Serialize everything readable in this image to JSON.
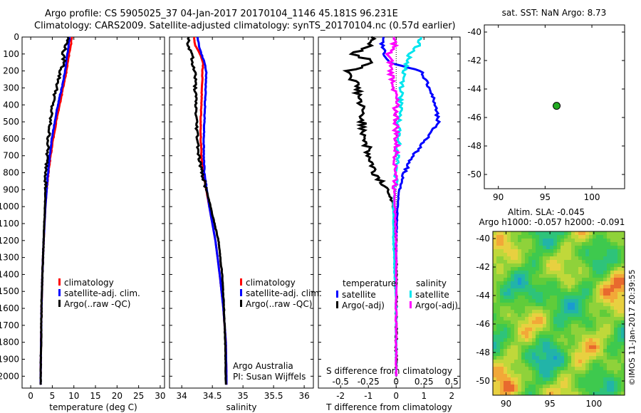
{
  "header": {
    "line1": "Argo profile: CS 5905025_37 04-Jan-2017 20170104_1146 45.181S 96.231E",
    "line2": "Climatology: CARS2009. Satellite-adjusted climatology: synTS_20170104.nc (0.57d earlier)"
  },
  "credit": "©IMOS 11-Jan-2017 20:39:55",
  "colors": {
    "climatology": "#ff0000",
    "satellite": "#0000ff",
    "argo": "#000000",
    "sal_sat": "#00e5ee",
    "sal_argo": "#ff00ff",
    "map_dot": "#22aa22"
  },
  "chart_data": [
    {
      "type": "line",
      "xlabel": "temperature (deg C)",
      "xticks": [
        "0",
        "5",
        "10",
        "15",
        "20",
        "25",
        "30"
      ],
      "xlim": [
        -2,
        31
      ],
      "ylim": [
        2070,
        0
      ],
      "yticks": [
        "0",
        "100",
        "200",
        "300",
        "400",
        "500",
        "600",
        "700",
        "800",
        "900",
        "1000",
        "1100",
        "1200",
        "1300",
        "1400",
        "1500",
        "1600",
        "1700",
        "1800",
        "1900",
        "2000"
      ],
      "legend": [
        "climatology",
        "satellite-adj. clim.",
        "Argo(..raw -QC)"
      ],
      "depth": [
        0,
        50,
        100,
        150,
        200,
        300,
        400,
        500,
        600,
        700,
        800,
        900,
        1000,
        1200,
        1400,
        1600,
        1800,
        2000,
        2050
      ],
      "series": [
        {
          "name": "climatology",
          "values": [
            9.5,
            9.3,
            8.9,
            8.6,
            8.3,
            7.5,
            6.7,
            5.9,
            5.2,
            4.6,
            4.1,
            3.7,
            3.4,
            3.0,
            2.7,
            2.5,
            2.4,
            2.3,
            2.3
          ]
        },
        {
          "name": "satellite-adj. clim.",
          "values": [
            9.0,
            8.8,
            8.5,
            8.2,
            8.0,
            7.2,
            6.3,
            5.6,
            4.9,
            4.4,
            4.0,
            3.7,
            3.4,
            3.0,
            2.7,
            2.5,
            2.4,
            2.3,
            2.3
          ]
        },
        {
          "name": "Argo(..raw -QC)",
          "values": [
            8.7,
            8.2,
            7.4,
            7.8,
            6.9,
            6.0,
            5.0,
            4.5,
            4.1,
            3.8,
            3.6,
            3.4,
            3.3,
            3.0,
            2.7,
            2.5,
            2.4,
            2.3,
            2.3
          ]
        }
      ]
    },
    {
      "type": "line",
      "xlabel": "salinity",
      "xticks": [
        "34",
        "34.5",
        "35",
        "35.5",
        "36"
      ],
      "xlim": [
        33.8,
        36.15
      ],
      "ylim": [
        2070,
        0
      ],
      "legend": [
        "climatology",
        "satellite-adj. clim.",
        "Argo(..raw -QC)"
      ],
      "annotation": [
        "Argo Australia",
        "PI: Susan Wijffels"
      ],
      "depth": [
        0,
        50,
        100,
        150,
        200,
        300,
        400,
        500,
        600,
        700,
        800,
        900,
        1000,
        1200,
        1400,
        1600,
        1800,
        2000,
        2050
      ],
      "series": [
        {
          "name": "climatology",
          "values": [
            34.2,
            34.22,
            34.3,
            34.35,
            34.34,
            34.33,
            34.32,
            34.31,
            34.31,
            34.32,
            34.35,
            34.4,
            34.45,
            34.55,
            34.62,
            34.68,
            34.72,
            34.73,
            34.73
          ]
        },
        {
          "name": "satellite-adj. clim.",
          "values": [
            34.26,
            34.28,
            34.32,
            34.37,
            34.4,
            34.39,
            34.38,
            34.37,
            34.36,
            34.36,
            34.37,
            34.41,
            34.45,
            34.55,
            34.62,
            34.68,
            34.72,
            34.73,
            34.73
          ]
        },
        {
          "name": "Argo(..raw -QC)",
          "values": [
            34.12,
            34.1,
            34.18,
            34.16,
            34.22,
            34.22,
            34.23,
            34.24,
            34.26,
            34.28,
            34.33,
            34.4,
            34.47,
            34.6,
            34.66,
            34.69,
            34.71,
            34.72,
            34.72
          ]
        }
      ]
    },
    {
      "type": "line",
      "xlabel": "T difference from climatology",
      "xlabel2": "S difference from climatology",
      "xticks": [
        "-2",
        "-1",
        "0",
        "1",
        "2"
      ],
      "xticks2": [
        "-0.5",
        "-0.25",
        "0",
        "0.25",
        "0.5"
      ],
      "xlim": [
        -2.8,
        2.3
      ],
      "ylim": [
        2070,
        0
      ],
      "legend_temperature": [
        "temperature",
        "satellite",
        "Argo(-adj)"
      ],
      "legend_salinity": [
        "salinity",
        "satellite",
        "Argo(-adj)"
      ],
      "depth": [
        0,
        50,
        100,
        150,
        200,
        300,
        400,
        500,
        600,
        700,
        800,
        900,
        1000,
        1200,
        1400,
        1600,
        1800,
        2000
      ],
      "series": [
        {
          "name": "satellite",
          "values": [
            -0.5,
            -0.5,
            -0.4,
            -0.3,
            0.9,
            1.2,
            1.4,
            1.5,
            1.1,
            0.6,
            0.3,
            0.1,
            0.05,
            0.0,
            0.0,
            0.0,
            0.0,
            0.0
          ]
        },
        {
          "name": "Argo(-adj)",
          "values": [
            -0.8,
            -1.0,
            -1.5,
            -0.8,
            -1.7,
            -1.4,
            -1.3,
            -1.2,
            -1.1,
            -1.0,
            -0.8,
            -0.3,
            -0.1,
            0.0,
            0.0,
            0.0,
            0.0,
            0.0
          ]
        },
        {
          "name": "satellite ",
          "values": [
            0.9,
            0.8,
            0.5,
            0.4,
            0.3,
            0.2,
            0.15,
            0.1,
            0.1,
            0.05,
            0.0,
            -0.05,
            -0.1,
            -0.1,
            -0.05,
            0.0,
            0.0,
            0.0
          ]
        },
        {
          "name": "Argo(-adj) ",
          "values": [
            -0.1,
            -0.05,
            -0.3,
            -0.2,
            -0.2,
            -0.05,
            0.0,
            0.0,
            0.0,
            0.0,
            0.0,
            -0.05,
            -0.05,
            0.0,
            0.0,
            0.0,
            0.0,
            0.0
          ]
        }
      ]
    },
    {
      "type": "scatter",
      "title": "sat. SST: NaN Argo: 8.73",
      "xticks": [
        "90",
        "95",
        "100"
      ],
      "yticks": [
        "-40",
        "-42",
        "-44",
        "-46",
        "-48",
        "-50"
      ],
      "xlim": [
        88.5,
        103.5
      ],
      "ylim": [
        -51,
        -39.5
      ],
      "x": [
        96.231
      ],
      "y": [
        -45.181
      ]
    },
    {
      "type": "heatmap",
      "title": "Altim. SLA: -0.045",
      "subtitle": "Argo h1000: -0.057 h2000: -0.091",
      "xticks": [
        "90",
        "95",
        "100"
      ],
      "yticks": [
        "-40",
        "-42",
        "-44",
        "-46",
        "-48",
        "-50"
      ],
      "xlim": [
        88.5,
        103.5
      ],
      "ylim": [
        -51,
        -39.5
      ]
    }
  ]
}
